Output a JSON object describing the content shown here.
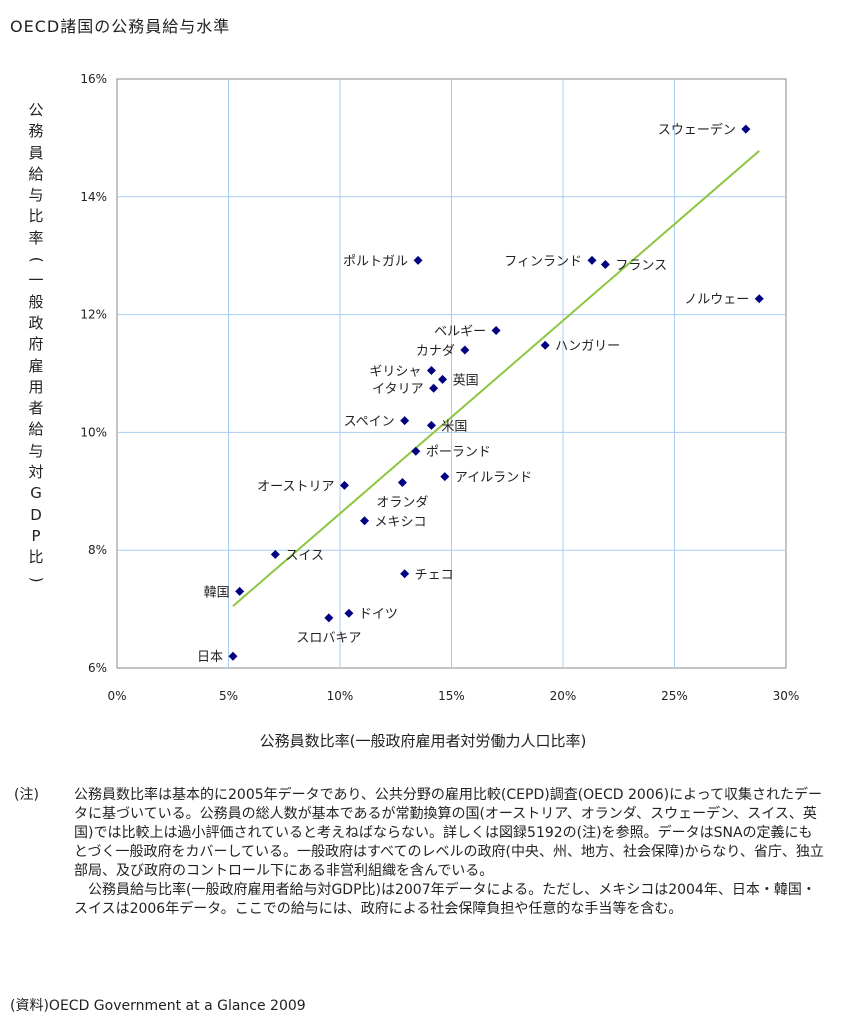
{
  "title": "OECD諸国の公務員給与水準",
  "chart_data": {
    "type": "scatter",
    "xlabel": "公務員数比率(一般政府雇用者対労働力人口比率)",
    "ylabel": "公務員給与比率(一般政府雇用者給与対GDP比)",
    "xlim": [
      0,
      30
    ],
    "ylim": [
      6,
      16
    ],
    "x_ticks": [
      "0%",
      "5%",
      "10%",
      "15%",
      "20%",
      "25%",
      "30%"
    ],
    "x_tick_values": [
      0,
      5,
      10,
      15,
      20,
      25,
      30
    ],
    "y_ticks": [
      "6%",
      "8%",
      "10%",
      "12%",
      "14%",
      "16%"
    ],
    "y_tick_values": [
      6,
      8,
      10,
      12,
      14,
      16
    ],
    "grid": true,
    "marker_color": "#000080",
    "trend_color": "#8cc63f",
    "trendline": {
      "x": [
        5.2,
        28.8
      ],
      "y": [
        7.05,
        14.78
      ]
    },
    "points": [
      {
        "label": "スウェーデン",
        "x": 28.2,
        "y": 15.15,
        "label_side": "left"
      },
      {
        "label": "ポルトガル",
        "x": 13.5,
        "y": 12.92,
        "label_side": "left"
      },
      {
        "label": "フィンランド",
        "x": 21.3,
        "y": 12.92,
        "label_side": "left"
      },
      {
        "label": "フランス",
        "x": 21.9,
        "y": 12.85,
        "label_side": "right"
      },
      {
        "label": "ノルウェー",
        "x": 28.8,
        "y": 12.27,
        "label_side": "left"
      },
      {
        "label": "ベルギー",
        "x": 17.0,
        "y": 11.73,
        "label_side": "left"
      },
      {
        "label": "ハンガリー",
        "x": 19.2,
        "y": 11.48,
        "label_side": "right"
      },
      {
        "label": "カナダ",
        "x": 15.6,
        "y": 11.4,
        "label_side": "left"
      },
      {
        "label": "ギリシャ",
        "x": 14.1,
        "y": 11.05,
        "label_side": "left"
      },
      {
        "label": "英国",
        "x": 14.6,
        "y": 10.9,
        "label_side": "right"
      },
      {
        "label": "イタリア",
        "x": 14.2,
        "y": 10.75,
        "label_side": "left"
      },
      {
        "label": "スペイン",
        "x": 12.9,
        "y": 10.2,
        "label_side": "left"
      },
      {
        "label": "米国",
        "x": 14.1,
        "y": 10.12,
        "label_side": "right"
      },
      {
        "label": "ポーランド",
        "x": 13.4,
        "y": 9.68,
        "label_side": "right"
      },
      {
        "label": "アイルランド",
        "x": 14.7,
        "y": 9.25,
        "label_side": "right"
      },
      {
        "label": "オーストリア",
        "x": 10.2,
        "y": 9.1,
        "label_side": "left"
      },
      {
        "label": "オランダ",
        "x": 12.8,
        "y": 9.15,
        "label_side": "below"
      },
      {
        "label": "メキシコ",
        "x": 11.1,
        "y": 8.5,
        "label_side": "right"
      },
      {
        "label": "スイス",
        "x": 7.1,
        "y": 7.93,
        "label_side": "right"
      },
      {
        "label": "チェコ",
        "x": 12.9,
        "y": 7.6,
        "label_side": "right"
      },
      {
        "label": "韓国",
        "x": 5.5,
        "y": 7.3,
        "label_side": "left"
      },
      {
        "label": "ドイツ",
        "x": 10.4,
        "y": 6.93,
        "label_side": "right"
      },
      {
        "label": "スロバキア",
        "x": 9.5,
        "y": 6.85,
        "label_side": "below"
      },
      {
        "label": "日本",
        "x": 5.2,
        "y": 6.2,
        "label_side": "left"
      }
    ]
  },
  "notes": {
    "label": "(注)",
    "paragraphs": [
      "公務員数比率は基本的に2005年データであり、公共分野の雇用比較(CEPD)調査(OECD 2006)によって収集されたデータに基づいている。公務員の総人数が基本であるが常勤換算の国(オーストリア、オランダ、スウェーデン、スイス、英国)では比較上は過小評価されていると考えねばならない。詳しくは図録5192の(注)を参照。データはSNAの定義にもとづく一般政府をカバーしている。一般政府はすべてのレベルの政府(中央、州、地方、社会保障)からなり、省庁、独立部局、及び政府のコントロール下にある非営利組織を含んでいる。",
      "公務員給与比率(一般政府雇用者給与対GDP比)は2007年データによる。ただし、メキシコは2004年、日本・韓国・スイスは2006年データ。ここでの給与には、政府による社会保障負担や任意的な手当等を含む。"
    ]
  },
  "source": "(資料)OECD Government at a Glance 2009"
}
